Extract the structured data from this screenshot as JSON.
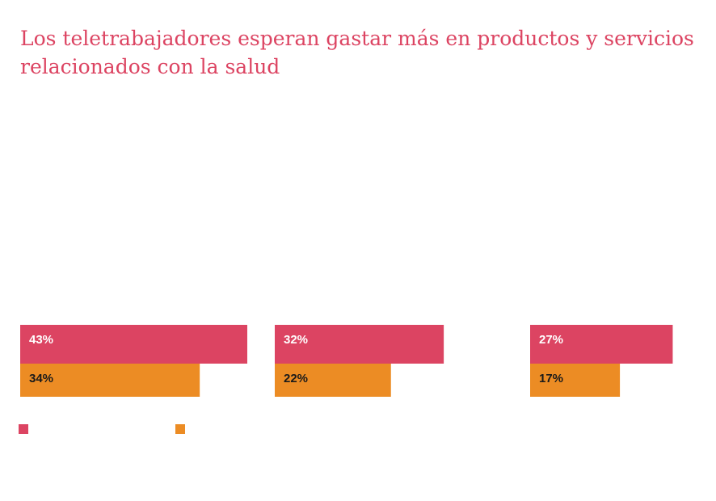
{
  "title": "Los teletrabajadores esperan gastar más en productos y servicios relacionados con la salud",
  "colors": {
    "series_a": "#dc4462",
    "series_b": "#ec8c24",
    "title": "#dc4462"
  },
  "chart_data": {
    "type": "bar",
    "orientation": "horizontal",
    "title": "Los teletrabajadores esperan gastar más en productos y servicios relacionados con la salud",
    "categories": [
      "",
      "",
      ""
    ],
    "series": [
      {
        "values": [
          43,
          32,
          27
        ],
        "labels": [
          "43%",
          "32%",
          "27%"
        ],
        "color": "#dc4462",
        "label_color": "#ffffff"
      },
      {
        "values": [
          34,
          22,
          17
        ],
        "labels": [
          "34%",
          "22%",
          "17%"
        ],
        "color": "#ec8c24",
        "label_color": "#1a1a1a"
      }
    ],
    "xlim": [
      0,
      43
    ],
    "unit": "%",
    "grid": false,
    "legend": "bottom-left"
  }
}
